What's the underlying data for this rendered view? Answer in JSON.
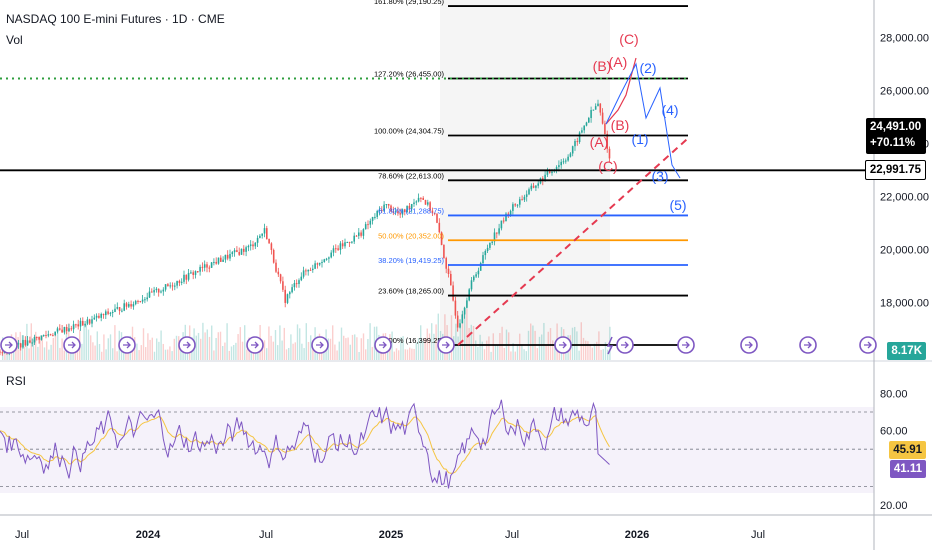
{
  "header": {
    "symbol": "NASDAQ 100 E-mini Futures · 1D · CME",
    "volume_label": "Vol",
    "rsi_label": "RSI"
  },
  "tags": {
    "last_price": "24,491.00",
    "change": "+70.11%",
    "level_price": "22,991.75",
    "volume": "8.17K",
    "rsi_signal": "45.91",
    "rsi_value": "41.11"
  },
  "colors": {
    "bull": "#26a69a",
    "bear": "#ef5350",
    "rsi_line": "#7e57c2",
    "rsi_ma": "#f5c542",
    "fib_black": "#000000",
    "fib_blue": "#2962ff",
    "fib_orange": "#ff9800",
    "wave_red": "#e53950",
    "wave_blue": "#2962ff",
    "target_green": "#2e9e3e"
  },
  "chart_data": [
    {
      "type": "candlestick",
      "price_axis": {
        "ticks": [
          "28,000.00",
          "26,000.00",
          "24,000.00",
          "22,000.00",
          "20,000.00",
          "18,000.00"
        ],
        "ylim": [
          16300,
          29300
        ]
      },
      "time_axis": {
        "ticks": [
          "Jul",
          "2024",
          "Jul",
          "2025",
          "Jul",
          "2026",
          "Jul"
        ]
      },
      "fib_levels": [
        {
          "ratio": 1.618,
          "label": "161.80% (29,190.25)",
          "price": 29190.25,
          "color": "#000000"
        },
        {
          "ratio": 1.272,
          "label": "127.20% (26,455.00)",
          "price": 26455.0,
          "color": "#000000"
        },
        {
          "ratio": 1.0,
          "label": "100.00% (24,304.75)",
          "price": 24304.75,
          "color": "#000000"
        },
        {
          "ratio": 0.786,
          "label": "78.60% (22,613.00)",
          "price": 22613.0,
          "color": "#000000"
        },
        {
          "ratio": 0.618,
          "label": "61.80% (21,288.75)",
          "price": 21288.75,
          "color": "#2962ff"
        },
        {
          "ratio": 0.5,
          "label": "50.00% (20,352.00)",
          "price": 20352.0,
          "color": "#ff9800"
        },
        {
          "ratio": 0.382,
          "label": "38.20% (19,419.25)",
          "price": 19419.25,
          "color": "#2962ff"
        },
        {
          "ratio": 0.236,
          "label": "23.60% (18,265.00)",
          "price": 18265.0,
          "color": "#000000"
        },
        {
          "ratio": 0.0,
          "label": "0.00% (16,399.25)",
          "price": 16399.25,
          "color": "#000000"
        }
      ],
      "horizontal_level": 22991.75,
      "target_level_dotted": 26455.0,
      "wave_labels": [
        {
          "text": "(C)",
          "color": "#e53950"
        },
        {
          "text": "(B)",
          "color": "#e53950"
        },
        {
          "text": "(A)",
          "color": "#e53950"
        },
        {
          "text": "(2)",
          "color": "#2962ff"
        },
        {
          "text": "(4)",
          "color": "#2962ff"
        },
        {
          "text": "(B)",
          "color": "#e53950"
        },
        {
          "text": "(1)",
          "color": "#2962ff"
        },
        {
          "text": "(A)",
          "color": "#e53950"
        },
        {
          "text": "(C)",
          "color": "#e53950"
        },
        {
          "text": "(3)",
          "color": "#2962ff"
        },
        {
          "text": "(5)",
          "color": "#2962ff"
        }
      ],
      "volume_last": "8.17K"
    },
    {
      "type": "line",
      "indicator": "RSI",
      "ticks": [
        "80.00",
        "60.00",
        "20.00"
      ],
      "ylim": [
        18,
        92
      ],
      "bands": [
        70,
        50,
        30
      ],
      "last_rsi": 41.11,
      "last_signal": 45.91
    }
  ]
}
